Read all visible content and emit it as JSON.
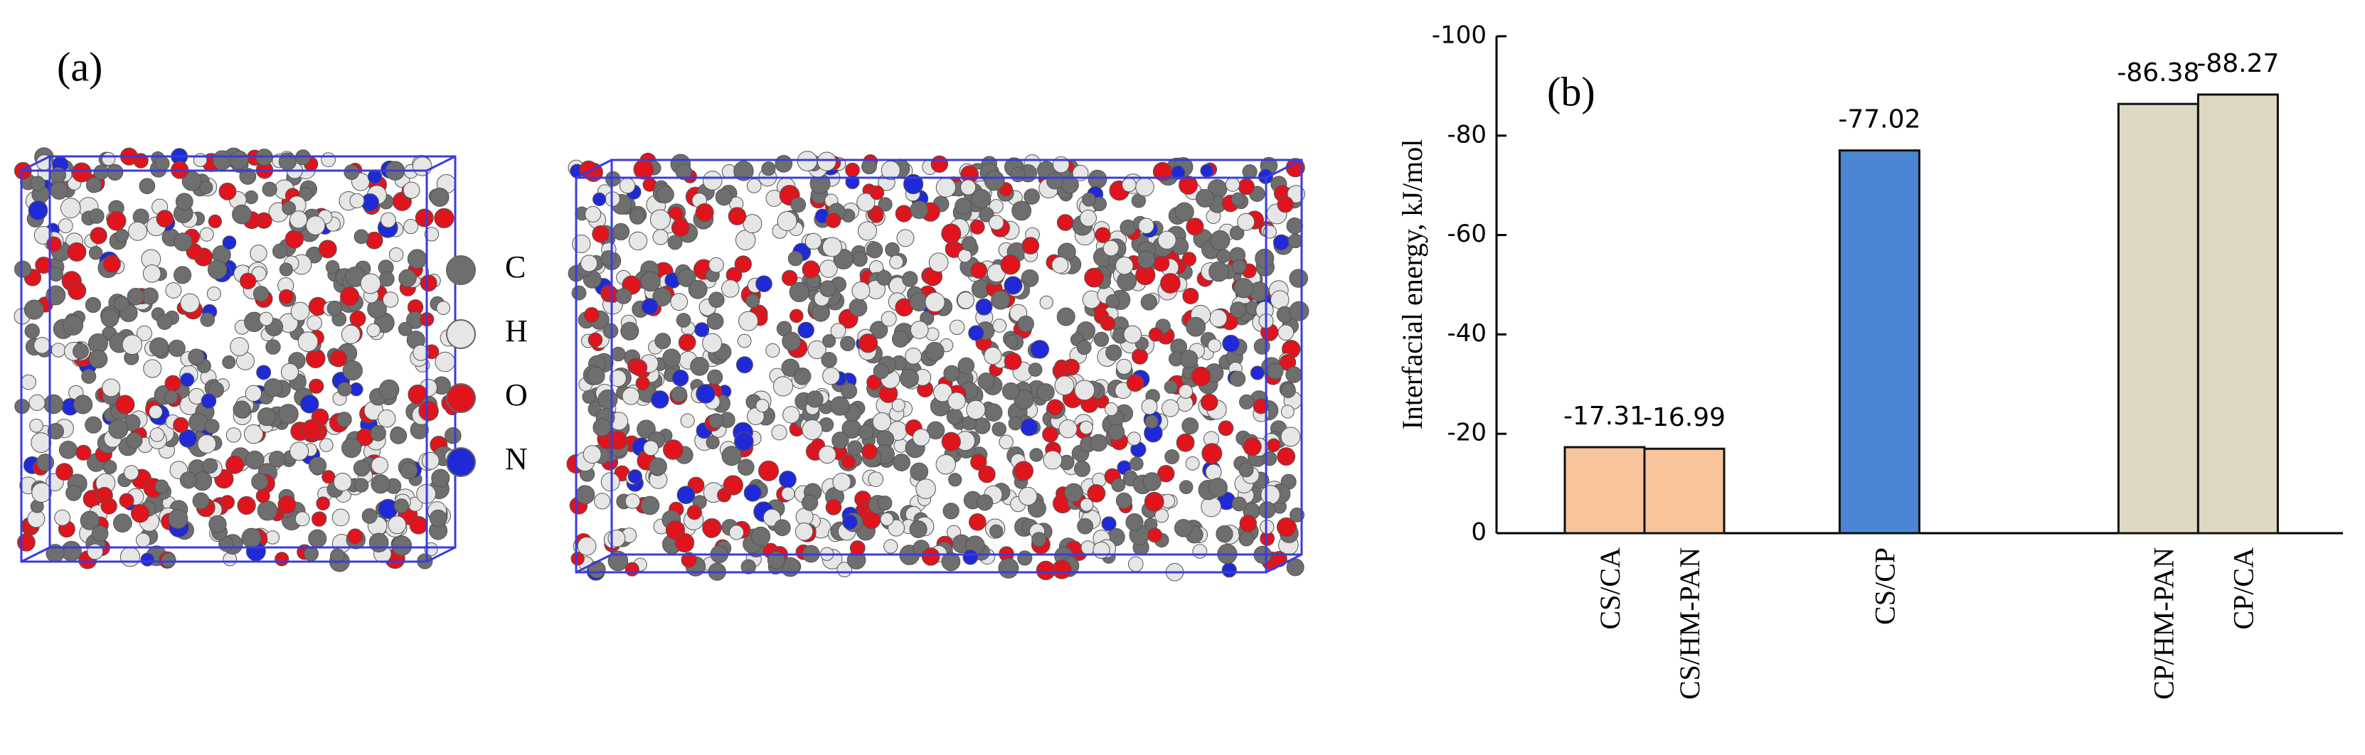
{
  "panel_a": {
    "label": "(a)",
    "legend": [
      {
        "label": "C",
        "color": "#6e6e6e"
      },
      {
        "label": "H",
        "color": "#e6e6e6"
      },
      {
        "label": "O",
        "color": "#e0141c"
      },
      {
        "label": "N",
        "color": "#1f2ad6"
      }
    ]
  },
  "chart_data": {
    "type": "bar",
    "panel_label": "(b)",
    "y_label": "Interfacial energy, kJ/mol",
    "categories": [
      "CS/CA",
      "CS/HM-PAN",
      "CS/CP",
      "CP/HM-PAN",
      "CP/CA"
    ],
    "values": [
      -17.31,
      -16.99,
      -77.02,
      -86.38,
      -88.27
    ],
    "colors": [
      "#f8c49c",
      "#f8c49c",
      "#4a86d4",
      "#ddd9c3",
      "#ddd9c3"
    ],
    "ylim": [
      0,
      -100
    ],
    "yticks": [
      0,
      -20,
      -40,
      -60,
      -80,
      -100
    ]
  }
}
